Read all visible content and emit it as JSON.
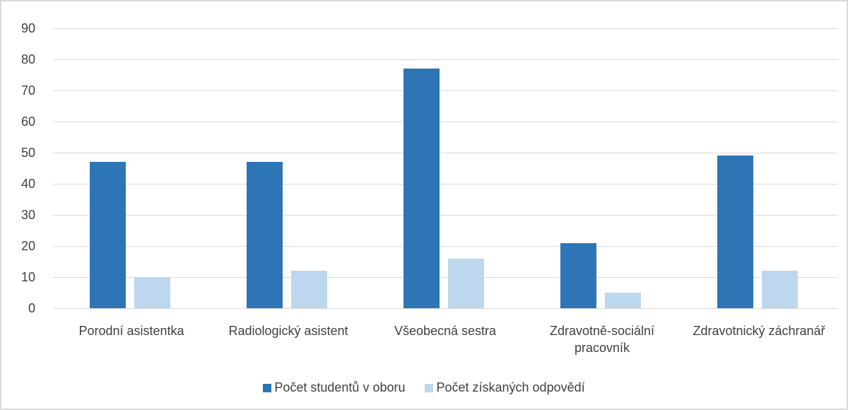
{
  "chart_data": {
    "type": "bar",
    "categories": [
      "Porodní asistentka",
      "Radiologický asistent",
      "Všeobecná sestra",
      "Zdravotně-sociální pracovník",
      "Zdravotnický záchranář"
    ],
    "series": [
      {
        "name": "Počet studentů v oboru",
        "color": "#2e75b6",
        "values": [
          47,
          47,
          77,
          21,
          49
        ]
      },
      {
        "name": "Počet získaných odpovědí",
        "color": "#bdd7ee",
        "values": [
          10,
          12,
          16,
          5,
          12
        ]
      }
    ],
    "ylim": [
      0,
      90
    ],
    "yticks": [
      0,
      10,
      20,
      30,
      40,
      50,
      60,
      70,
      80,
      90
    ],
    "grid": true,
    "legend": "bottom"
  }
}
